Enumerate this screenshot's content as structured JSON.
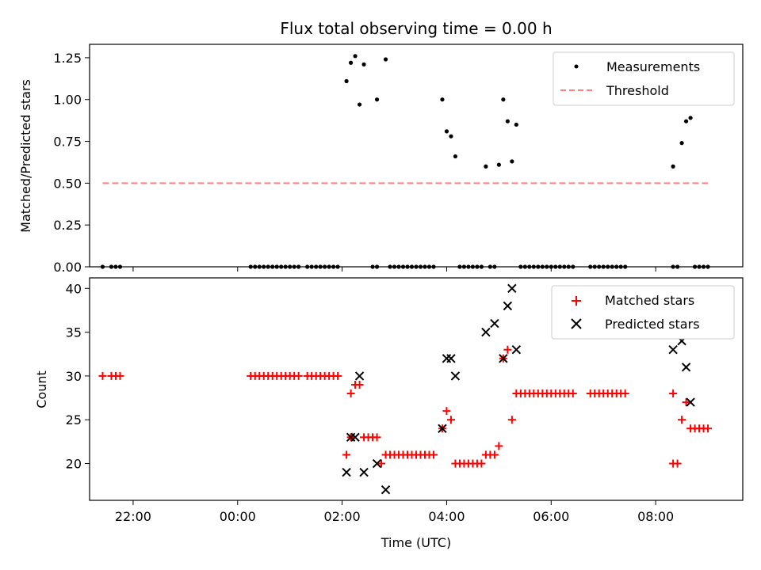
{
  "figure": {
    "title": "Flux total observing time = 0.00 h"
  },
  "chart_data": [
    {
      "type": "scatter",
      "ylabel": "Matched/Predicted stars",
      "xlabel": "",
      "xlim": [
        "21:10",
        "09:40"
      ],
      "ylim": [
        0,
        1.33
      ],
      "yticks": [
        "0.00",
        "0.25",
        "0.50",
        "0.75",
        "1.00",
        "1.25"
      ],
      "ytick_values": [
        0,
        0.25,
        0.5,
        0.75,
        1.0,
        1.25
      ],
      "xtick_values": [
        "22:00",
        "00:00",
        "02:00",
        "04:00",
        "06:00",
        "08:00"
      ],
      "legend": {
        "position": "top-right",
        "entries": [
          "Measurements",
          "Threshold"
        ]
      },
      "series": [
        {
          "name": "Measurements",
          "marker": "dot",
          "color": "#000000",
          "points": [
            [
              "21:25",
              0
            ],
            [
              "21:35",
              0
            ],
            [
              "21:40",
              0
            ],
            [
              "21:45",
              0
            ],
            [
              "00:15",
              0
            ],
            [
              "00:20",
              0
            ],
            [
              "00:25",
              0
            ],
            [
              "00:30",
              0
            ],
            [
              "00:35",
              0
            ],
            [
              "00:40",
              0
            ],
            [
              "00:45",
              0
            ],
            [
              "00:50",
              0
            ],
            [
              "00:55",
              0
            ],
            [
              "01:00",
              0
            ],
            [
              "01:05",
              0
            ],
            [
              "01:10",
              0
            ],
            [
              "01:20",
              0
            ],
            [
              "01:25",
              0
            ],
            [
              "01:30",
              0
            ],
            [
              "01:35",
              0
            ],
            [
              "01:40",
              0
            ],
            [
              "01:45",
              0
            ],
            [
              "01:50",
              0
            ],
            [
              "01:55",
              0
            ],
            [
              "02:05",
              1.11
            ],
            [
              "02:10",
              1.22
            ],
            [
              "02:15",
              1.26
            ],
            [
              "02:20",
              0.97
            ],
            [
              "02:25",
              1.21
            ],
            [
              "02:35",
              0
            ],
            [
              "02:40",
              0
            ],
            [
              "02:40",
              1.0
            ],
            [
              "02:50",
              1.24
            ],
            [
              "02:55",
              0
            ],
            [
              "03:00",
              0
            ],
            [
              "03:05",
              0
            ],
            [
              "03:10",
              0
            ],
            [
              "03:15",
              0
            ],
            [
              "03:20",
              0
            ],
            [
              "03:25",
              0
            ],
            [
              "03:30",
              0
            ],
            [
              "03:35",
              0
            ],
            [
              "03:40",
              0
            ],
            [
              "03:45",
              0
            ],
            [
              "03:55",
              1.0
            ],
            [
              "04:00",
              0.81
            ],
            [
              "04:05",
              0.78
            ],
            [
              "04:10",
              0.66
            ],
            [
              "04:15",
              0
            ],
            [
              "04:20",
              0
            ],
            [
              "04:25",
              0
            ],
            [
              "04:30",
              0
            ],
            [
              "04:35",
              0
            ],
            [
              "04:40",
              0
            ],
            [
              "04:45",
              0.6
            ],
            [
              "04:50",
              0
            ],
            [
              "04:55",
              0
            ],
            [
              "05:00",
              0.61
            ],
            [
              "05:05",
              1.0
            ],
            [
              "05:10",
              0.87
            ],
            [
              "05:15",
              0.63
            ],
            [
              "05:20",
              0.85
            ],
            [
              "05:25",
              0
            ],
            [
              "05:30",
              0
            ],
            [
              "05:35",
              0
            ],
            [
              "05:40",
              0
            ],
            [
              "05:45",
              0
            ],
            [
              "05:50",
              0
            ],
            [
              "05:55",
              0
            ],
            [
              "06:00",
              0
            ],
            [
              "06:05",
              0
            ],
            [
              "06:10",
              0
            ],
            [
              "06:15",
              0
            ],
            [
              "06:20",
              0
            ],
            [
              "06:25",
              0
            ],
            [
              "06:45",
              0
            ],
            [
              "06:50",
              0
            ],
            [
              "06:55",
              0
            ],
            [
              "07:00",
              0
            ],
            [
              "07:05",
              0
            ],
            [
              "07:10",
              0
            ],
            [
              "07:15",
              0
            ],
            [
              "07:20",
              0
            ],
            [
              "07:25",
              0
            ],
            [
              "08:20",
              0.6
            ],
            [
              "08:20",
              0
            ],
            [
              "08:25",
              0
            ],
            [
              "08:30",
              0.74
            ],
            [
              "08:35",
              0.87
            ],
            [
              "08:40",
              0.89
            ],
            [
              "08:45",
              0
            ],
            [
              "08:50",
              0
            ],
            [
              "08:55",
              0
            ],
            [
              "09:00",
              0
            ]
          ]
        },
        {
          "name": "Threshold",
          "style": "dashed",
          "color": "#ff7f7f",
          "points": [
            [
              "21:25",
              0.5
            ],
            [
              "09:00",
              0.5
            ]
          ]
        }
      ]
    },
    {
      "type": "scatter",
      "ylabel": "Count",
      "xlabel": "Time (UTC)",
      "xlim": [
        "21:10",
        "09:40"
      ],
      "ylim": [
        15.8,
        41.2
      ],
      "yticks": [
        "20",
        "25",
        "30",
        "35",
        "40"
      ],
      "ytick_values": [
        20,
        25,
        30,
        35,
        40
      ],
      "xticks": [
        "22:00",
        "00:00",
        "02:00",
        "04:00",
        "06:00",
        "08:00"
      ],
      "legend": {
        "position": "top-right",
        "entries": [
          "Matched stars",
          "Predicted stars"
        ]
      },
      "series": [
        {
          "name": "Matched stars",
          "marker": "plus",
          "color": "#ff0000",
          "points": [
            [
              "21:25",
              30
            ],
            [
              "21:35",
              30
            ],
            [
              "21:40",
              30
            ],
            [
              "21:45",
              30
            ],
            [
              "00:15",
              30
            ],
            [
              "00:20",
              30
            ],
            [
              "00:25",
              30
            ],
            [
              "00:30",
              30
            ],
            [
              "00:35",
              30
            ],
            [
              "00:40",
              30
            ],
            [
              "00:45",
              30
            ],
            [
              "00:50",
              30
            ],
            [
              "00:55",
              30
            ],
            [
              "01:00",
              30
            ],
            [
              "01:05",
              30
            ],
            [
              "01:10",
              30
            ],
            [
              "01:20",
              30
            ],
            [
              "01:25",
              30
            ],
            [
              "01:30",
              30
            ],
            [
              "01:35",
              30
            ],
            [
              "01:40",
              30
            ],
            [
              "01:45",
              30
            ],
            [
              "01:50",
              30
            ],
            [
              "01:55",
              30
            ],
            [
              "02:05",
              21
            ],
            [
              "02:10",
              28
            ],
            [
              "02:10",
              23
            ],
            [
              "02:15",
              29
            ],
            [
              "02:20",
              29
            ],
            [
              "02:25",
              23
            ],
            [
              "02:30",
              23
            ],
            [
              "02:35",
              23
            ],
            [
              "02:40",
              23
            ],
            [
              "02:45",
              20
            ],
            [
              "02:50",
              21
            ],
            [
              "02:55",
              21
            ],
            [
              "03:00",
              21
            ],
            [
              "03:05",
              21
            ],
            [
              "03:10",
              21
            ],
            [
              "03:15",
              21
            ],
            [
              "03:20",
              21
            ],
            [
              "03:25",
              21
            ],
            [
              "03:30",
              21
            ],
            [
              "03:35",
              21
            ],
            [
              "03:40",
              21
            ],
            [
              "03:45",
              21
            ],
            [
              "03:55",
              24
            ],
            [
              "04:00",
              26
            ],
            [
              "04:05",
              25
            ],
            [
              "04:10",
              20
            ],
            [
              "04:15",
              20
            ],
            [
              "04:20",
              20
            ],
            [
              "04:25",
              20
            ],
            [
              "04:30",
              20
            ],
            [
              "04:35",
              20
            ],
            [
              "04:40",
              20
            ],
            [
              "04:45",
              21
            ],
            [
              "04:50",
              21
            ],
            [
              "04:55",
              21
            ],
            [
              "05:00",
              22
            ],
            [
              "05:05",
              32
            ],
            [
              "05:10",
              33
            ],
            [
              "05:15",
              25
            ],
            [
              "05:20",
              28
            ],
            [
              "05:25",
              28
            ],
            [
              "05:30",
              28
            ],
            [
              "05:35",
              28
            ],
            [
              "05:40",
              28
            ],
            [
              "05:45",
              28
            ],
            [
              "05:50",
              28
            ],
            [
              "05:55",
              28
            ],
            [
              "06:00",
              28
            ],
            [
              "06:05",
              28
            ],
            [
              "06:10",
              28
            ],
            [
              "06:15",
              28
            ],
            [
              "06:20",
              28
            ],
            [
              "06:25",
              28
            ],
            [
              "06:45",
              28
            ],
            [
              "06:50",
              28
            ],
            [
              "06:55",
              28
            ],
            [
              "07:00",
              28
            ],
            [
              "07:05",
              28
            ],
            [
              "07:10",
              28
            ],
            [
              "07:15",
              28
            ],
            [
              "07:20",
              28
            ],
            [
              "07:25",
              28
            ],
            [
              "08:20",
              28
            ],
            [
              "08:20",
              20
            ],
            [
              "08:25",
              20
            ],
            [
              "08:30",
              25
            ],
            [
              "08:35",
              27
            ],
            [
              "08:40",
              24
            ],
            [
              "08:45",
              24
            ],
            [
              "08:50",
              24
            ],
            [
              "08:55",
              24
            ],
            [
              "09:00",
              24
            ]
          ]
        },
        {
          "name": "Predicted stars",
          "marker": "x",
          "color": "#000000",
          "points": [
            [
              "02:05",
              19
            ],
            [
              "02:10",
              23
            ],
            [
              "02:15",
              23
            ],
            [
              "02:20",
              30
            ],
            [
              "02:25",
              19
            ],
            [
              "02:40",
              20
            ],
            [
              "02:50",
              17
            ],
            [
              "03:55",
              24
            ],
            [
              "04:00",
              32
            ],
            [
              "04:05",
              32
            ],
            [
              "04:10",
              30
            ],
            [
              "04:45",
              35
            ],
            [
              "04:55",
              36
            ],
            [
              "05:05",
              32
            ],
            [
              "05:10",
              38
            ],
            [
              "05:15",
              40
            ],
            [
              "05:20",
              33
            ],
            [
              "08:20",
              33
            ],
            [
              "08:30",
              34
            ],
            [
              "08:35",
              31
            ],
            [
              "08:40",
              27
            ]
          ]
        }
      ]
    }
  ]
}
